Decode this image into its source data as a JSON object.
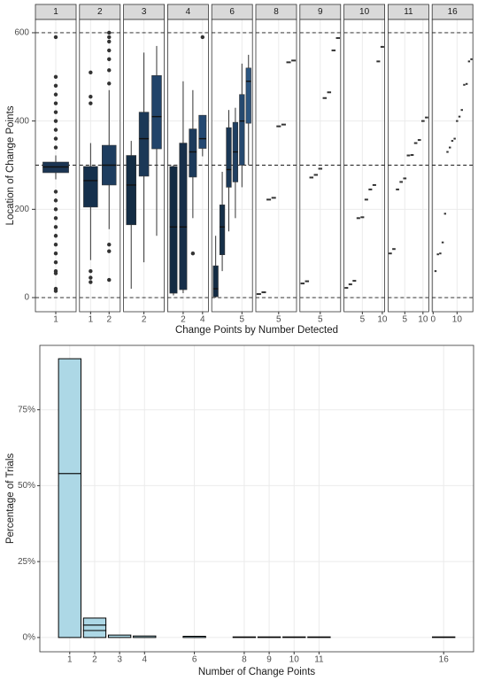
{
  "chart_data": [
    {
      "type": "boxplot",
      "y_label": "Location of Change Points",
      "x_label": "Change Points by Number Detected",
      "ylim": [
        -32,
        630
      ],
      "yticks": [
        0,
        200,
        400,
        600
      ],
      "hlines": [
        0,
        300,
        600
      ],
      "grid": true,
      "facets": [
        {
          "label": "1",
          "xlim": [
            0.4,
            1.6
          ],
          "xticks": [
            1
          ],
          "boxes": [
            {
              "low": 268,
              "q1": 283,
              "median": 296,
              "q3": 307,
              "high": 322,
              "color": "#1b3553",
              "outliers": [
                15,
                20,
                55,
                60,
                80,
                100,
                120,
                140,
                160,
                180,
                200,
                220,
                240,
                340,
                360,
                380,
                400,
                420,
                440,
                460,
                480,
                500,
                590
              ]
            }
          ]
        },
        {
          "label": "2",
          "xlim": [
            0.4,
            2.6
          ],
          "xticks": [
            1,
            2
          ],
          "boxes": [
            {
              "low": 85,
              "q1": 205,
              "median": 265,
              "q3": 297,
              "high": 350,
              "color": "#15304c",
              "outliers": [
                35,
                45,
                60,
                440,
                455,
                510
              ]
            },
            {
              "low": 155,
              "q1": 255,
              "median": 300,
              "q3": 345,
              "high": 470,
              "color": "#1e3d5f",
              "outliers": [
                40,
                105,
                120,
                485,
                515,
                540,
                560,
                580,
                590,
                600
              ]
            }
          ]
        },
        {
          "label": "3",
          "xlim": [
            0.4,
            3.6
          ],
          "xticks": [
            2
          ],
          "boxes": [
            {
              "low": 20,
              "q1": 165,
              "median": 255,
              "q3": 322,
              "high": 355,
              "color": "#132c44",
              "outliers": []
            },
            {
              "low": 80,
              "q1": 275,
              "median": 360,
              "q3": 420,
              "high": 555,
              "color": "#1b3857",
              "outliers": []
            },
            {
              "low": 140,
              "q1": 337,
              "median": 410,
              "q3": 503,
              "high": 570,
              "color": "#22446a",
              "outliers": []
            }
          ]
        },
        {
          "label": "4",
          "xlim": [
            0.4,
            4.6
          ],
          "xticks": [
            2,
            4
          ],
          "boxes": [
            {
              "low": 5,
              "q1": 10,
              "median": 160,
              "q3": 297,
              "high": 300,
              "color": "#132b43",
              "outliers": []
            },
            {
              "low": 10,
              "q1": 18,
              "median": 160,
              "q3": 350,
              "high": 490,
              "color": "#172f4a",
              "outliers": []
            },
            {
              "low": 180,
              "q1": 273,
              "median": 330,
              "q3": 382,
              "high": 470,
              "color": "#1c3a5b",
              "outliers": [
                100
              ]
            },
            {
              "low": 320,
              "q1": 338,
              "median": 360,
              "q3": 413,
              "high": 413,
              "color": "#234871",
              "outliers": [
                590
              ]
            }
          ]
        },
        {
          "label": "6",
          "xlim": [
            0.4,
            6.6
          ],
          "xticks": [
            5
          ],
          "boxes": [
            {
              "low": 0,
              "q1": 2,
              "median": 20,
              "q3": 72,
              "high": 140,
              "color": "#132b43",
              "outliers": []
            },
            {
              "low": 60,
              "q1": 97,
              "median": 160,
              "q3": 210,
              "high": 285,
              "color": "#163049",
              "outliers": []
            },
            {
              "low": 150,
              "q1": 250,
              "median": 290,
              "q3": 385,
              "high": 425,
              "color": "#1a3755",
              "outliers": []
            },
            {
              "low": 180,
              "q1": 262,
              "median": 330,
              "q3": 397,
              "high": 430,
              "color": "#1f3f62",
              "outliers": []
            },
            {
              "low": 250,
              "q1": 300,
              "median": 400,
              "q3": 460,
              "high": 530,
              "color": "#25496f",
              "outliers": []
            },
            {
              "low": 300,
              "q1": 395,
              "median": 490,
              "q3": 520,
              "high": 550,
              "color": "#2b5580",
              "outliers": []
            }
          ]
        },
        {
          "label": "8",
          "xlim": [
            0.4,
            8.6
          ],
          "xticks": [
            5
          ],
          "color": "#333333",
          "points": [
            8,
            12,
            222,
            226,
            388,
            392,
            533,
            537
          ]
        },
        {
          "label": "9",
          "xlim": [
            0.4,
            9.6
          ],
          "xticks": [
            5
          ],
          "color": "#333333",
          "points": [
            32,
            37,
            272,
            278,
            292,
            452,
            465,
            560,
            588
          ]
        },
        {
          "label": "10",
          "xlim": [
            0.4,
            10.6
          ],
          "xticks": [
            5,
            10
          ],
          "color": "#333333",
          "points": [
            22,
            30,
            38,
            180,
            182,
            222,
            245,
            255,
            535,
            568
          ]
        },
        {
          "label": "11",
          "xlim": [
            0.4,
            11.6
          ],
          "xticks": [
            5,
            10
          ],
          "color": "#333333",
          "points": [
            100,
            110,
            245,
            262,
            270,
            322,
            323,
            350,
            357,
            400,
            408
          ]
        },
        {
          "label": "16",
          "xlim": [
            -0.4,
            16.6
          ],
          "xticks": [
            0,
            10
          ],
          "color": "#333333",
          "points": [
            60,
            98,
            100,
            125,
            190,
            330,
            340,
            355,
            360,
            400,
            410,
            425,
            482,
            484,
            535,
            540
          ]
        }
      ]
    },
    {
      "type": "bar",
      "y_label": "Percentage of Trials",
      "x_label": "Number of Change Points",
      "x": [
        1,
        2,
        3,
        4,
        6,
        8,
        9,
        10,
        11,
        16
      ],
      "values": [
        [
          54.0,
          37.8
        ],
        [
          2.3,
          1.8,
          2.3
        ],
        [
          0.8
        ],
        [
          0.5
        ],
        [
          0.4
        ],
        [
          0.2
        ],
        [
          0.2
        ],
        [
          0.2
        ],
        [
          0.2
        ],
        [
          0.2
        ]
      ],
      "color": "#add8e6",
      "xlim": [
        -0.2,
        17.2
      ],
      "xticks": [
        1,
        2,
        3,
        4,
        6,
        8,
        9,
        10,
        11,
        16
      ],
      "ylim": [
        -4.7,
        96.2
      ],
      "yticks": [
        {
          "value": 0,
          "label": "0%"
        },
        {
          "value": 25,
          "label": "25%"
        },
        {
          "value": 50,
          "label": "50%"
        },
        {
          "value": 75,
          "label": "75%"
        }
      ],
      "grid": true
    }
  ]
}
